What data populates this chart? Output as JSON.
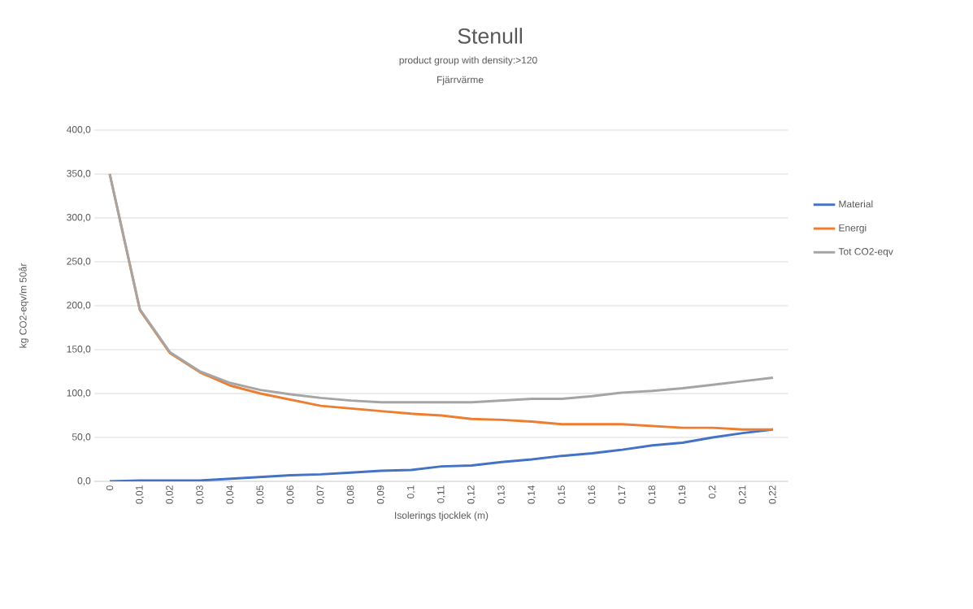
{
  "chart_data": {
    "type": "line",
    "title": "Stenull",
    "subtitle": "product group with density:>120",
    "annotations": [
      "Fjärrvärme"
    ],
    "xlabel": "Isolerings tjocklek (m)",
    "ylabel": "kg CO2-eqv/m 50år",
    "categories": [
      "0",
      "0,01",
      "0,02",
      "0,03",
      "0,04",
      "0,05",
      "0,06",
      "0,07",
      "0,08",
      "0,09",
      "0,1",
      "0,11",
      "0,12",
      "0,13",
      "0,14",
      "0,15",
      "0,16",
      "0,17",
      "0,18",
      "0,19",
      "0,2",
      "0,21",
      "0,22"
    ],
    "series": [
      {
        "name": "Material",
        "color": "#4472c4",
        "values": [
          0,
          1,
          1,
          1,
          3,
          5,
          7,
          8,
          10,
          12,
          13,
          17,
          18,
          22,
          25,
          29,
          32,
          36,
          41,
          44,
          50,
          55,
          59
        ]
      },
      {
        "name": "Energi",
        "color": "#ed7d31",
        "values": [
          350,
          195,
          146,
          124,
          109,
          100,
          93,
          86,
          83,
          80,
          77,
          75,
          71,
          70,
          68,
          65,
          65,
          65,
          63,
          61,
          61,
          59,
          59
        ]
      },
      {
        "name": "Tot CO2-eqv",
        "color": "#a5a5a5",
        "values": [
          350,
          196,
          147,
          125,
          112,
          104,
          99,
          95,
          92,
          90,
          90,
          90,
          90,
          92,
          94,
          94,
          97,
          101,
          103,
          106,
          110,
          114,
          118
        ]
      }
    ],
    "ylim": [
      0,
      400
    ],
    "yticks": [
      {
        "value": 0,
        "label": "0,0"
      },
      {
        "value": 50,
        "label": "50,0"
      },
      {
        "value": 100,
        "label": "100,0"
      },
      {
        "value": 150,
        "label": "150,0"
      },
      {
        "value": 200,
        "label": "200,0"
      },
      {
        "value": 250,
        "label": "250,0"
      },
      {
        "value": 300,
        "label": "300,0"
      },
      {
        "value": 350,
        "label": "350,0"
      },
      {
        "value": 400,
        "label": "400,0"
      }
    ],
    "grid": "y",
    "legend": "right"
  }
}
